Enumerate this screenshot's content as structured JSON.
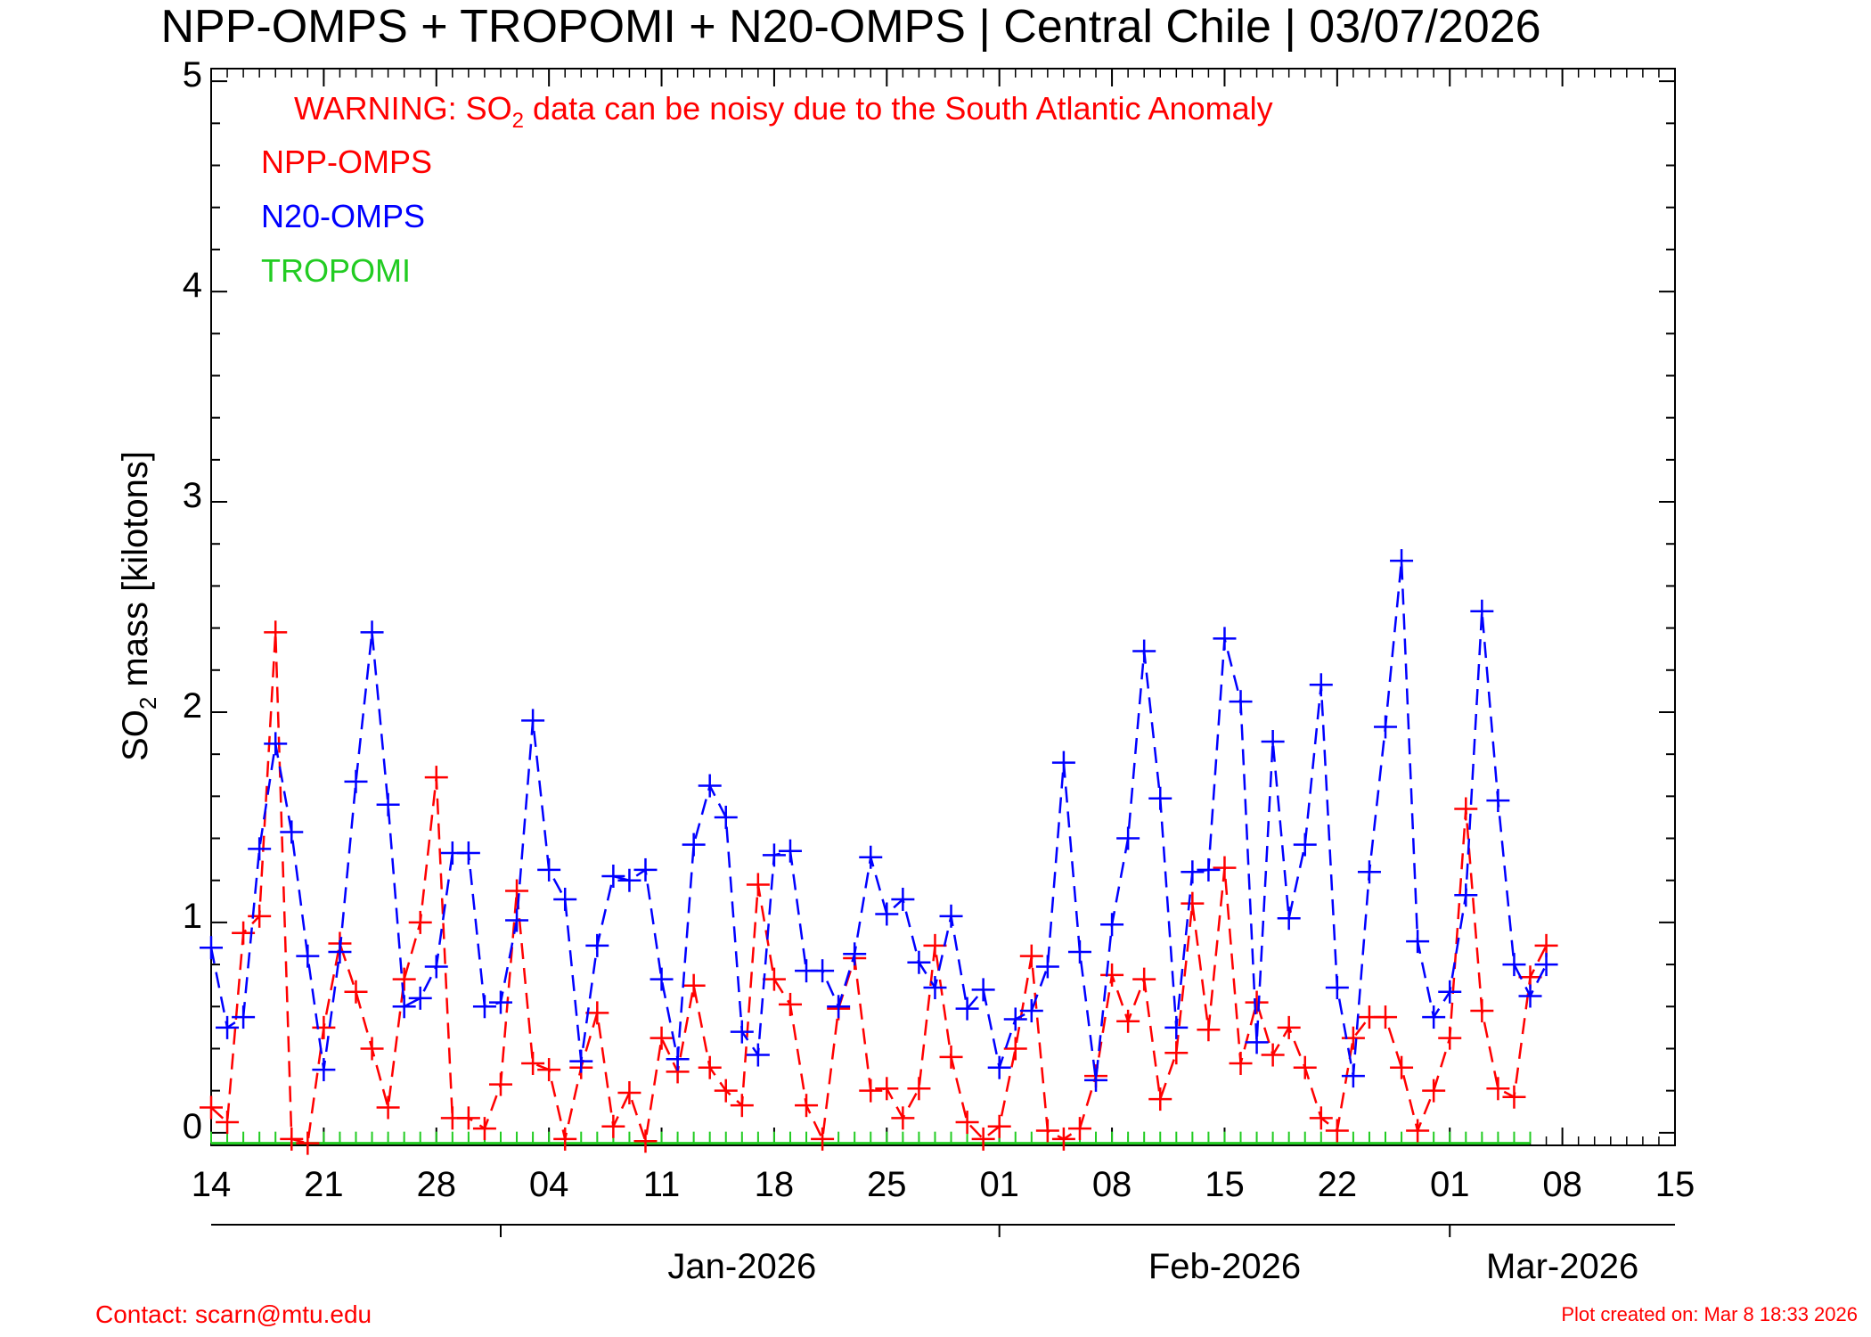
{
  "title": "NPP-OMPS + TROPOMI + N20-OMPS | Central Chile | 03/07/2026",
  "warning": {
    "prefix": "WARNING: SO",
    "subscript": "2",
    "suffix": " data can be noisy due to the South Atlantic Anomaly"
  },
  "legend": [
    {
      "name": "NPP-OMPS",
      "color": "#ff0000"
    },
    {
      "name": "N20-OMPS",
      "color": "#0000ff"
    },
    {
      "name": "TROPOMI",
      "color": "#22cc22"
    }
  ],
  "ylabel": {
    "prefix": "SO",
    "subscript": "2",
    "suffix": " mass [kilotons]"
  },
  "footer": {
    "contact": "Contact: scarn@mtu.edu",
    "created": "Plot created on: Mar  8 18:33 2026"
  },
  "colors": {
    "npp": "#ff0000",
    "n20": "#0000ff",
    "tropomi": "#22cc22",
    "axis": "#000000"
  },
  "chart_data": {
    "type": "line",
    "x_type": "date",
    "xlim": [
      "2025-12-14",
      "2026-03-15"
    ],
    "ylim": [
      -0.06,
      5.06
    ],
    "y_ticks": [
      "0",
      "1",
      "2",
      "3",
      "4",
      "5"
    ],
    "x_tick_dates": [
      "2025-12-14",
      "2025-12-21",
      "2025-12-28",
      "2026-01-04",
      "2026-01-11",
      "2026-01-18",
      "2026-01-25",
      "2026-02-01",
      "2026-02-08",
      "2026-02-15",
      "2026-02-22",
      "2026-03-01",
      "2026-03-08",
      "2026-03-15"
    ],
    "x_tick_labels": [
      "14",
      "21",
      "28",
      "04",
      "11",
      "18",
      "25",
      "01",
      "08",
      "15",
      "22",
      "01",
      "08",
      "15"
    ],
    "months": [
      {
        "label": "Jan-2026",
        "date": "2026-01-01",
        "center": "2026-01-16"
      },
      {
        "label": "Feb-2026",
        "date": "2026-02-01",
        "center": "2026-02-15"
      },
      {
        "label": "Mar-2026",
        "date": "2026-03-01",
        "center": "2026-03-08"
      }
    ],
    "series": [
      {
        "name": "NPP-OMPS",
        "x": [
          "2025-12-14",
          "2025-12-15",
          "2025-12-16",
          "2025-12-17",
          "2025-12-18",
          "2025-12-19",
          "2025-12-20",
          "2025-12-21",
          "2025-12-22",
          "2025-12-23",
          "2025-12-24",
          "2025-12-25",
          "2025-12-26",
          "2025-12-27",
          "2025-12-28",
          "2025-12-29",
          "2025-12-30",
          "2025-12-31",
          "2026-01-01",
          "2026-01-02",
          "2026-01-03",
          "2026-01-04",
          "2026-01-05",
          "2026-01-06",
          "2026-01-07",
          "2026-01-08",
          "2026-01-09",
          "2026-01-10",
          "2026-01-11",
          "2026-01-12",
          "2026-01-13",
          "2026-01-14",
          "2026-01-15",
          "2026-01-16",
          "2026-01-17",
          "2026-01-18",
          "2026-01-19",
          "2026-01-20",
          "2026-01-21",
          "2026-01-22",
          "2026-01-23",
          "2026-01-24",
          "2026-01-25",
          "2026-01-26",
          "2026-01-27",
          "2026-01-28",
          "2026-01-29",
          "2026-01-30",
          "2026-01-31",
          "2026-02-01",
          "2026-02-02",
          "2026-02-03",
          "2026-02-04",
          "2026-02-05",
          "2026-02-06",
          "2026-02-07",
          "2026-02-08",
          "2026-02-09",
          "2026-02-10",
          "2026-02-11",
          "2026-02-12",
          "2026-02-13",
          "2026-02-14",
          "2026-02-15",
          "2026-02-16",
          "2026-02-17",
          "2026-02-18",
          "2026-02-19",
          "2026-02-20",
          "2026-02-21",
          "2026-02-22",
          "2026-02-23",
          "2026-02-24",
          "2026-02-25",
          "2026-02-26",
          "2026-02-27",
          "2026-02-28",
          "2026-03-01",
          "2026-03-02",
          "2026-03-03",
          "2026-03-04",
          "2026-03-05",
          "2026-03-06",
          "2026-03-07"
        ],
        "values": [
          0.12,
          0.05,
          0.95,
          1.03,
          2.38,
          -0.03,
          -0.05,
          0.5,
          0.9,
          0.67,
          0.4,
          0.12,
          0.73,
          1.0,
          1.69,
          0.07,
          0.07,
          0.02,
          0.23,
          1.15,
          0.33,
          0.3,
          -0.03,
          0.31,
          0.57,
          0.03,
          0.19,
          -0.04,
          0.45,
          0.29,
          0.7,
          0.31,
          0.2,
          0.13,
          1.18,
          0.73,
          0.61,
          0.13,
          -0.03,
          0.59,
          0.83,
          0.2,
          0.21,
          0.07,
          0.21,
          0.89,
          0.36,
          0.05,
          -0.03,
          0.03,
          0.4,
          0.84,
          0.01,
          -0.03,
          0.02,
          0.27,
          0.75,
          0.53,
          0.73,
          0.16,
          0.38,
          1.09,
          0.49,
          1.26,
          0.33,
          0.62,
          0.37,
          0.5,
          0.31,
          0.07,
          0.01,
          0.45,
          0.55,
          0.55,
          0.31,
          0.01,
          0.2,
          0.45,
          1.54,
          0.58,
          0.21,
          0.17,
          0.74,
          0.89
        ]
      },
      {
        "name": "N20-OMPS",
        "x": [
          "2025-12-14",
          "2025-12-15",
          "2025-12-16",
          "2025-12-17",
          "2025-12-18",
          "2025-12-19",
          "2025-12-20",
          "2025-12-21",
          "2025-12-22",
          "2025-12-23",
          "2025-12-24",
          "2025-12-25",
          "2025-12-26",
          "2025-12-27",
          "2025-12-28",
          "2025-12-29",
          "2025-12-30",
          "2025-12-31",
          "2026-01-01",
          "2026-01-02",
          "2026-01-03",
          "2026-01-04",
          "2026-01-05",
          "2026-01-06",
          "2026-01-07",
          "2026-01-08",
          "2026-01-09",
          "2026-01-10",
          "2026-01-11",
          "2026-01-12",
          "2026-01-13",
          "2026-01-14",
          "2026-01-15",
          "2026-01-16",
          "2026-01-17",
          "2026-01-18",
          "2026-01-19",
          "2026-01-20",
          "2026-01-21",
          "2026-01-22",
          "2026-01-23",
          "2026-01-24",
          "2026-01-25",
          "2026-01-26",
          "2026-01-27",
          "2026-01-28",
          "2026-01-29",
          "2026-01-30",
          "2026-01-31",
          "2026-02-01",
          "2026-02-02",
          "2026-02-03",
          "2026-02-04",
          "2026-02-05",
          "2026-02-06",
          "2026-02-07",
          "2026-02-08",
          "2026-02-09",
          "2026-02-10",
          "2026-02-11",
          "2026-02-12",
          "2026-02-13",
          "2026-02-14",
          "2026-02-15",
          "2026-02-16",
          "2026-02-17",
          "2026-02-18",
          "2026-02-19",
          "2026-02-20",
          "2026-02-21",
          "2026-02-22",
          "2026-02-23",
          "2026-02-24",
          "2026-02-25",
          "2026-02-26",
          "2026-02-27",
          "2026-02-28",
          "2026-03-01",
          "2026-03-02",
          "2026-03-03",
          "2026-03-04",
          "2026-03-05",
          "2026-03-06",
          "2026-03-07"
        ],
        "values": [
          0.88,
          0.5,
          0.55,
          1.35,
          1.85,
          1.43,
          0.84,
          0.3,
          0.86,
          1.67,
          2.38,
          1.56,
          0.6,
          0.64,
          0.79,
          1.33,
          1.33,
          0.6,
          0.62,
          1.01,
          1.96,
          1.25,
          1.11,
          0.34,
          0.89,
          1.22,
          1.2,
          1.25,
          0.73,
          0.35,
          1.37,
          1.65,
          1.5,
          0.48,
          0.37,
          1.32,
          1.34,
          0.77,
          0.77,
          0.6,
          0.85,
          1.31,
          1.04,
          1.11,
          0.81,
          0.69,
          1.03,
          0.59,
          0.68,
          0.31,
          0.54,
          0.58,
          0.79,
          1.76,
          0.86,
          0.25,
          0.99,
          1.4,
          2.29,
          1.59,
          0.5,
          1.24,
          1.25,
          2.35,
          2.05,
          0.43,
          1.86,
          1.02,
          1.37,
          2.13,
          0.69,
          0.27,
          1.24,
          1.93,
          2.72,
          0.91,
          0.55,
          0.67,
          1.13,
          2.48,
          1.58,
          0.8,
          0.65,
          0.8
        ]
      },
      {
        "name": "TROPOMI",
        "x": [
          "2025-12-14",
          "2025-12-15",
          "2025-12-16",
          "2025-12-17",
          "2025-12-18",
          "2025-12-19",
          "2025-12-20",
          "2025-12-21",
          "2025-12-22",
          "2025-12-23",
          "2025-12-24",
          "2025-12-25",
          "2025-12-26",
          "2025-12-27",
          "2025-12-28",
          "2025-12-29",
          "2025-12-30",
          "2025-12-31",
          "2026-01-01",
          "2026-01-02",
          "2026-01-03",
          "2026-01-04",
          "2026-01-05",
          "2026-01-06",
          "2026-01-07",
          "2026-01-08",
          "2026-01-09",
          "2026-01-10",
          "2026-01-11",
          "2026-01-12",
          "2026-01-13",
          "2026-01-14",
          "2026-01-15",
          "2026-01-16",
          "2026-01-17",
          "2026-01-18",
          "2026-01-19",
          "2026-01-20",
          "2026-01-21",
          "2026-01-22",
          "2026-01-23",
          "2026-01-24",
          "2026-01-25",
          "2026-01-26",
          "2026-01-27",
          "2026-01-28",
          "2026-01-29",
          "2026-01-30",
          "2026-01-31",
          "2026-02-01",
          "2026-02-02",
          "2026-02-03",
          "2026-02-04",
          "2026-02-05",
          "2026-02-06",
          "2026-02-07",
          "2026-02-08",
          "2026-02-09",
          "2026-02-10",
          "2026-02-11",
          "2026-02-12",
          "2026-02-13",
          "2026-02-14",
          "2026-02-15",
          "2026-02-16",
          "2026-02-17",
          "2026-02-18",
          "2026-02-19",
          "2026-02-20",
          "2026-02-21",
          "2026-02-22",
          "2026-02-23",
          "2026-02-24",
          "2026-02-25",
          "2026-02-26",
          "2026-02-27",
          "2026-02-28",
          "2026-03-01",
          "2026-03-02",
          "2026-03-03",
          "2026-03-04",
          "2026-03-05",
          "2026-03-06"
        ],
        "values": [
          -0.05,
          -0.05,
          -0.05,
          -0.05,
          -0.05,
          -0.05,
          -0.05,
          -0.05,
          -0.05,
          -0.05,
          -0.05,
          -0.05,
          -0.05,
          -0.05,
          -0.05,
          -0.05,
          -0.05,
          -0.05,
          -0.05,
          -0.05,
          -0.05,
          -0.05,
          -0.05,
          -0.05,
          -0.05,
          -0.05,
          -0.05,
          -0.05,
          -0.05,
          -0.05,
          -0.05,
          -0.05,
          -0.05,
          -0.05,
          -0.05,
          -0.05,
          -0.05,
          -0.05,
          -0.05,
          -0.05,
          -0.05,
          -0.05,
          -0.05,
          -0.05,
          -0.05,
          -0.05,
          -0.05,
          -0.05,
          -0.05,
          -0.05,
          -0.05,
          -0.05,
          -0.05,
          -0.05,
          -0.05,
          -0.05,
          -0.05,
          -0.05,
          -0.05,
          -0.05,
          -0.05,
          -0.05,
          -0.05,
          -0.05,
          -0.05,
          -0.05,
          -0.05,
          -0.05,
          -0.05,
          -0.05,
          -0.05,
          -0.05,
          -0.05,
          -0.05,
          -0.05,
          -0.05,
          -0.05,
          -0.05,
          -0.05,
          -0.05,
          -0.05,
          -0.05,
          -0.05
        ]
      }
    ]
  }
}
